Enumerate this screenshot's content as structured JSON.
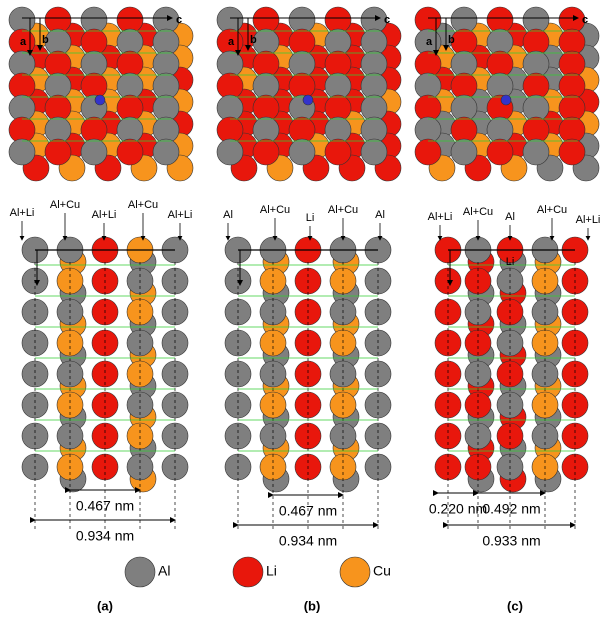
{
  "panels": [
    {
      "label": "(a)",
      "axes": [
        "a",
        "b",
        "c"
      ],
      "sites": [
        "Al+Li",
        "Al+Cu",
        "Al+Li",
        "Al+Cu",
        "Al+Li"
      ],
      "dimensions": [
        "0.467 nm",
        "0.934 nm"
      ]
    },
    {
      "label": "(b)",
      "axes": [
        "a",
        "b",
        "c"
      ],
      "sites": [
        "Al",
        "Al+Cu",
        "Li",
        "Al+Cu",
        "Al"
      ],
      "dimensions": [
        "0.467 nm",
        "0.934 nm"
      ]
    },
    {
      "label": "(c)",
      "axes": [
        "a",
        "b",
        "c"
      ],
      "sites": [
        "Al+Li",
        "Al+Cu",
        "Al",
        "Al+Cu",
        "Al+Li",
        "Li"
      ],
      "dimensions": [
        "0.220 nm",
        "0.492 nm",
        "0.933 nm"
      ]
    }
  ],
  "legend": [
    {
      "label": "Al"
    },
    {
      "label": "Li"
    },
    {
      "label": "Cu"
    }
  ]
}
